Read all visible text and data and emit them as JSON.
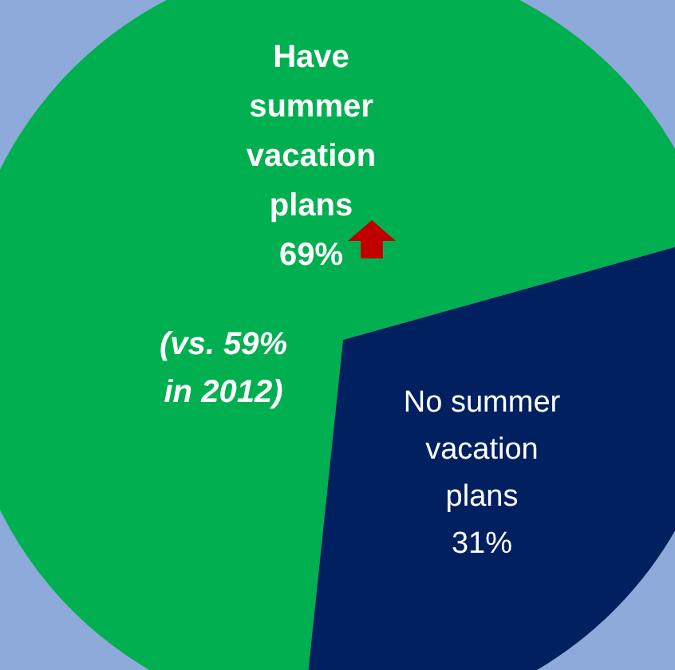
{
  "chart_data": {
    "type": "pie",
    "categories": [
      "Have summer vacation plans",
      "No summer vacation plans"
    ],
    "values": [
      69,
      31
    ],
    "value_labels": [
      "69%",
      "31%"
    ],
    "colors": [
      "#00b050",
      "#002060"
    ],
    "annotations": [
      "(vs. 59% in 2012)"
    ]
  }
}
